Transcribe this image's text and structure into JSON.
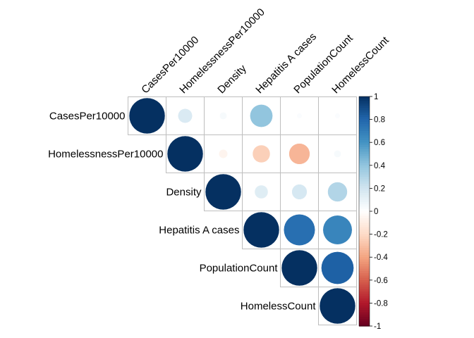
{
  "chart_data": {
    "type": "heatmap",
    "variables": [
      "CasesPer10000",
      "HomelessnessPer10000",
      "Density",
      "Hepatitis A cases",
      "PopulationCount",
      "HomelessCount"
    ],
    "matrix": [
      [
        1.0,
        0.16,
        0.04,
        0.4,
        0.02,
        0.02
      ],
      [
        0.16,
        1.0,
        -0.06,
        -0.24,
        -0.34,
        0.04
      ],
      [
        0.04,
        -0.06,
        1.0,
        0.14,
        0.18,
        0.3
      ],
      [
        0.4,
        -0.24,
        0.14,
        1.0,
        0.76,
        0.66
      ],
      [
        0.02,
        -0.34,
        0.18,
        0.76,
        1.0,
        0.82
      ],
      [
        0.02,
        0.04,
        0.3,
        0.66,
        0.82,
        1.0
      ]
    ],
    "triangle": "upper",
    "marker": "circle",
    "colorbar": {
      "ticks": [
        "1",
        "0.8",
        "0.6",
        "0.4",
        "0.2",
        "0",
        "-0.2",
        "-0.4",
        "-0.6",
        "-0.8",
        "-1"
      ],
      "range": [
        -1,
        1
      ],
      "colors": {
        "neg1": "#67001F",
        "neg08": "#B2182B",
        "neg06": "#D6604D",
        "neg04": "#F4A582",
        "neg02": "#FDDBC7",
        "zero": "#FFFFFF",
        "pos02": "#D1E5F0",
        "pos04": "#92C5DE",
        "pos06": "#4393C3",
        "pos08": "#2166AC",
        "pos1": "#053061"
      }
    },
    "grid_color": "#BEBEBE"
  }
}
